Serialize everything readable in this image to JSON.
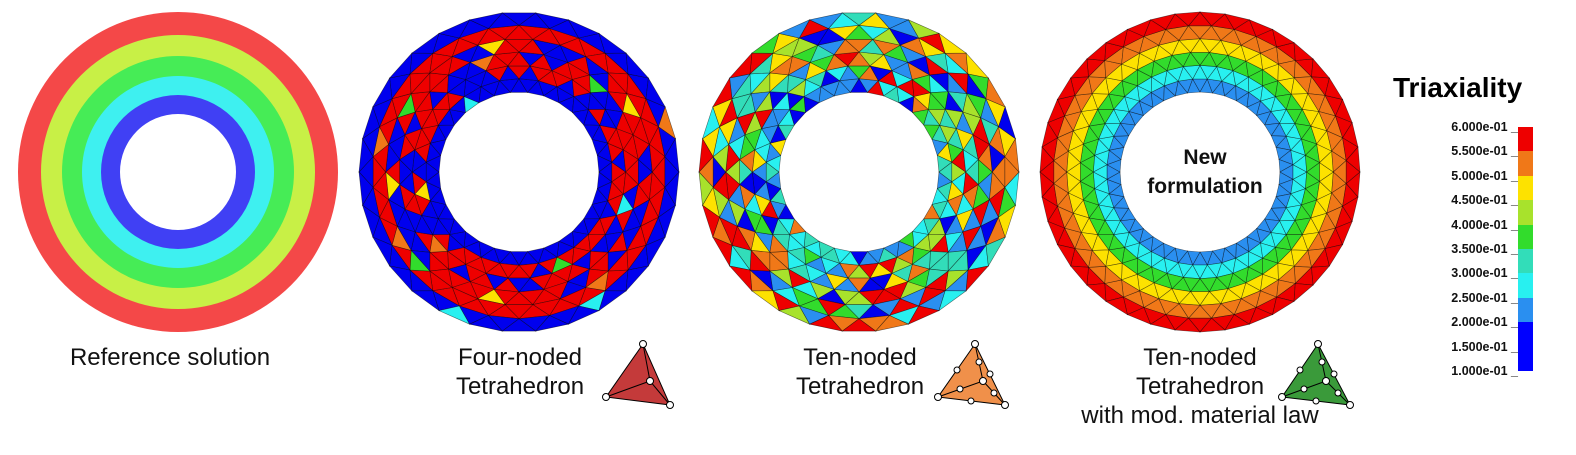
{
  "panels": [
    {
      "id": "reference",
      "caption": [
        "Reference solution"
      ],
      "overlay": []
    },
    {
      "id": "four-noded",
      "caption": [
        "Four-noded",
        "Tetrahedron"
      ],
      "overlay": []
    },
    {
      "id": "ten-noded",
      "caption": [
        "Ten-noded",
        "Tetrahedron"
      ],
      "overlay": []
    },
    {
      "id": "ten-noded-mod",
      "caption": [
        "Ten-noded",
        "Tetrahedron",
        "with mod. material law"
      ],
      "overlay": [
        "New",
        "formulation"
      ]
    }
  ],
  "legend": {
    "title": "Triaxiality",
    "ticks": [
      "6.000e-01",
      "5.500e-01",
      "5.000e-01",
      "4.500e-01",
      "4.000e-01",
      "3.500e-01",
      "3.000e-01",
      "2.500e-01",
      "2.000e-01",
      "1.500e-01",
      "1.000e-01"
    ],
    "colors": [
      "#ee0000",
      "#f07818",
      "#fde200",
      "#a8e22c",
      "#32dc2c",
      "#32ddb9",
      "#28f0f0",
      "#2a8ff0",
      "#0000ff",
      "#0000ff"
    ]
  },
  "reference_bands": [
    "#f44848",
    "#c8f046",
    "#46ec56",
    "#3ef0f0",
    "#4040f4"
  ],
  "colors": {
    "four_noded_icon": "#c43a3a",
    "ten_noded_icon": "#f0904a",
    "mod_icon": "#3a9a3a"
  }
}
